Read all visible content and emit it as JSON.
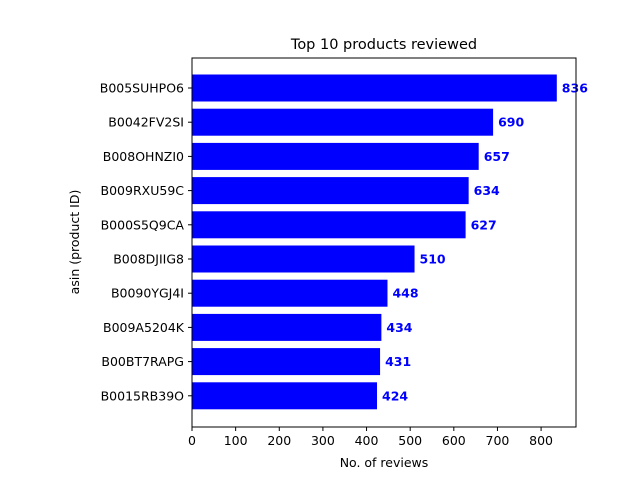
{
  "chart_data": {
    "type": "bar",
    "orientation": "horizontal",
    "title": "Top 10 products reviewed",
    "xlabel": "No. of reviews",
    "ylabel": "asin (product ID)",
    "categories": [
      "B005SUHPO6",
      "B0042FV2SI",
      "B008OHNZI0",
      "B009RXU59C",
      "B000S5Q9CA",
      "B008DJIIG8",
      "B0090YGJ4I",
      "B009A5204K",
      "B00BT7RAPG",
      "B0015RB39O"
    ],
    "values": [
      836,
      690,
      657,
      634,
      627,
      510,
      448,
      434,
      431,
      424
    ],
    "data_labels": [
      "836",
      "690",
      "657",
      "634",
      "627",
      "510",
      "448",
      "434",
      "431",
      "424"
    ],
    "xlim": [
      0,
      880
    ],
    "xticks": [
      0,
      100,
      200,
      300,
      400,
      500,
      600,
      700,
      800
    ],
    "xtick_labels": [
      "0",
      "100",
      "200",
      "300",
      "400",
      "500",
      "600",
      "700",
      "800"
    ],
    "grid": false,
    "colors": {
      "bar": "#0000ff",
      "data_label": "#0000ff"
    }
  }
}
